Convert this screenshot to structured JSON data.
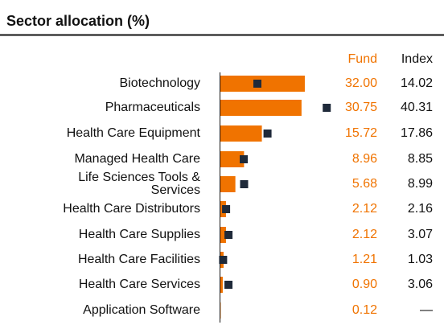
{
  "chart_data": {
    "type": "bar",
    "title": "Sector allocation (%)",
    "categories": [
      "Biotechnology",
      "Pharmaceuticals",
      "Health Care Equipment",
      "Managed Health Care",
      "Life Sciences Tools & Services",
      "Health Care Distributors",
      "Health Care Supplies",
      "Health Care Facilities",
      "Health Care Services",
      "Application Software"
    ],
    "series": [
      {
        "name": "Fund",
        "color": "#f07300",
        "values": [
          32.0,
          30.75,
          15.72,
          8.96,
          5.68,
          2.12,
          2.12,
          1.21,
          0.9,
          0.12
        ],
        "value_labels": [
          "32.00",
          "30.75",
          "15.72",
          "8.96",
          "5.68",
          "2.12",
          "2.12",
          "1.21",
          "0.90",
          "0.12"
        ]
      },
      {
        "name": "Index",
        "color": "#1f2a3a",
        "values": [
          14.02,
          40.31,
          17.86,
          8.85,
          8.99,
          2.16,
          3.07,
          1.03,
          3.06,
          null
        ],
        "value_labels": [
          "14.02",
          "40.31",
          "17.86",
          "8.85",
          "8.99",
          "2.16",
          "3.07",
          "1.03",
          "3.06",
          "—"
        ]
      }
    ]
  }
}
